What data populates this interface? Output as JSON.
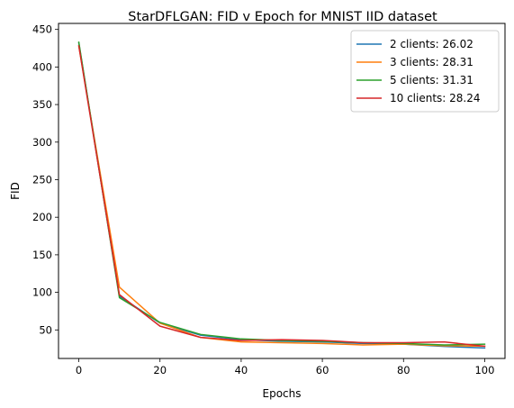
{
  "chart_data": {
    "type": "line",
    "title": "StarDFLGAN: FID v Epoch for MNIST IID  dataset",
    "xlabel": "Epochs",
    "ylabel": "FID",
    "xlim": [
      -5,
      105
    ],
    "ylim": [
      12,
      458
    ],
    "xticks": [
      0,
      20,
      40,
      60,
      80,
      100
    ],
    "yticks": [
      50,
      100,
      150,
      200,
      250,
      300,
      350,
      400,
      450
    ],
    "grid": false,
    "legend_position": "top-right",
    "x": [
      0,
      10,
      20,
      30,
      40,
      50,
      60,
      70,
      80,
      90,
      100
    ],
    "series": [
      {
        "name": "2 clients: 26.02",
        "color": "#1f77b4",
        "values": [
          432,
          95,
          59,
          43,
          37,
          35,
          34,
          32,
          31,
          28,
          26
        ]
      },
      {
        "name": "3 clients: 28.31",
        "color": "#ff7f0e",
        "values": [
          428,
          107,
          59,
          40,
          34,
          33,
          32,
          30,
          31,
          29,
          28.31
        ]
      },
      {
        "name": "5 clients: 31.31",
        "color": "#2ca02c",
        "values": [
          433,
          93,
          60,
          44,
          38,
          36,
          35,
          33,
          32,
          30,
          31
        ]
      },
      {
        "name": "10 clients: 28.24",
        "color": "#d62728",
        "values": [
          428,
          97,
          55,
          40,
          36,
          37,
          36,
          33,
          33,
          34,
          28.24
        ]
      }
    ]
  }
}
